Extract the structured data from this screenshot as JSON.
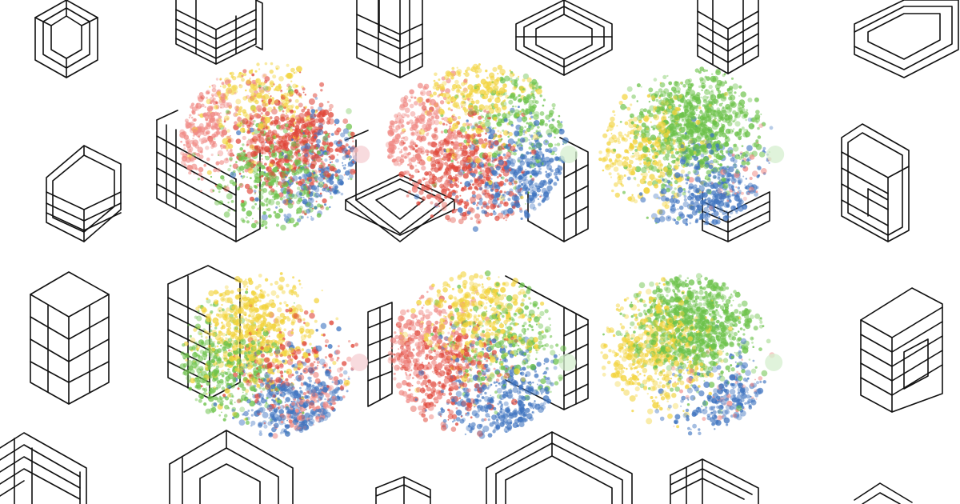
{
  "palette": {
    "red": "#e0483b",
    "salmon": "#f08a85",
    "yellow": "#f2d33b",
    "green": "#6cc24a",
    "blue": "#3f74c0",
    "pale": "#f5cfd3",
    "wire": "#111111",
    "background": "#ffffff"
  },
  "clusters": [
    {
      "mix": {
        "red": 0.34,
        "salmon": 0.18,
        "yellow": 0.14,
        "green": 0.22,
        "blue": 0.12
      }
    },
    {
      "mix": {
        "red": 0.3,
        "salmon": 0.18,
        "yellow": 0.17,
        "green": 0.13,
        "blue": 0.22
      }
    },
    {
      "mix": {
        "red": 0.0,
        "salmon": 0.02,
        "yellow": 0.18,
        "green": 0.58,
        "blue": 0.22
      }
    },
    {
      "mix": {
        "red": 0.1,
        "salmon": 0.07,
        "yellow": 0.36,
        "green": 0.24,
        "blue": 0.23
      }
    },
    {
      "mix": {
        "red": 0.2,
        "salmon": 0.15,
        "yellow": 0.24,
        "green": 0.18,
        "blue": 0.23
      }
    },
    {
      "mix": {
        "red": 0.0,
        "salmon": 0.02,
        "yellow": 0.28,
        "green": 0.58,
        "blue": 0.12
      }
    }
  ]
}
